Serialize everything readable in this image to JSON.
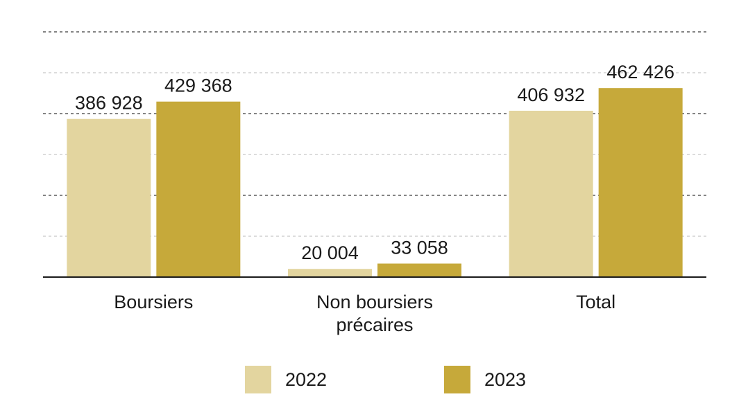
{
  "chart_data": {
    "type": "bar",
    "categories": [
      [
        "Boursiers"
      ],
      [
        "Non boursiers",
        "précaires"
      ],
      [
        "Total"
      ]
    ],
    "series": [
      {
        "name": "2022",
        "color": "#e3d59f",
        "values": [
          386928,
          20004,
          406932
        ],
        "labels": [
          "386 928",
          "20 004",
          "406 932"
        ]
      },
      {
        "name": "2023",
        "color": "#c6a93a",
        "values": [
          429368,
          33058,
          462426
        ],
        "labels": [
          "429 368",
          "33 058",
          "462 426"
        ]
      }
    ],
    "ylim": [
      0,
      600000
    ],
    "gridlines": [
      100000,
      200000,
      300000,
      400000,
      500000,
      600000
    ],
    "grid": true,
    "legend_position": "bottom"
  }
}
